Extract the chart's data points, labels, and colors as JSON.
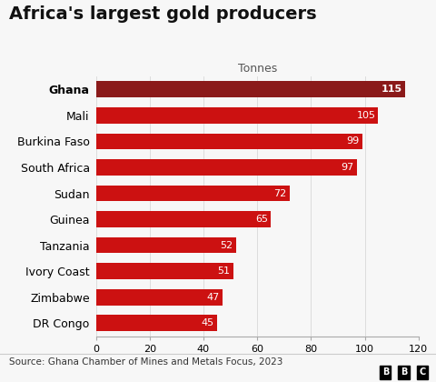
{
  "title": "Africa's largest gold producers",
  "subtitle": "Tonnes",
  "categories": [
    "DR Congo",
    "Zimbabwe",
    "Ivory Coast",
    "Tanzania",
    "Guinea",
    "Sudan",
    "South Africa",
    "Burkina Faso",
    "Mali",
    "Ghana"
  ],
  "values": [
    45,
    47,
    51,
    52,
    65,
    72,
    97,
    99,
    105,
    115
  ],
  "label_color": "#ffffff",
  "top_bar_color": "#8b1a1a",
  "regular_bar_color": "#cc1111",
  "background_color": "#f7f7f7",
  "footer_text": "Source: Ghana Chamber of Mines and Metals Focus, 2023",
  "bbc_letters": [
    "B",
    "B",
    "C"
  ],
  "xlim": [
    0,
    120
  ],
  "xticks": [
    0,
    20,
    40,
    60,
    80,
    100,
    120
  ],
  "title_fontsize": 14,
  "subtitle_fontsize": 9,
  "tick_fontsize": 8,
  "label_fontsize": 8,
  "bar_height": 0.62,
  "footer_fontsize": 7.5
}
